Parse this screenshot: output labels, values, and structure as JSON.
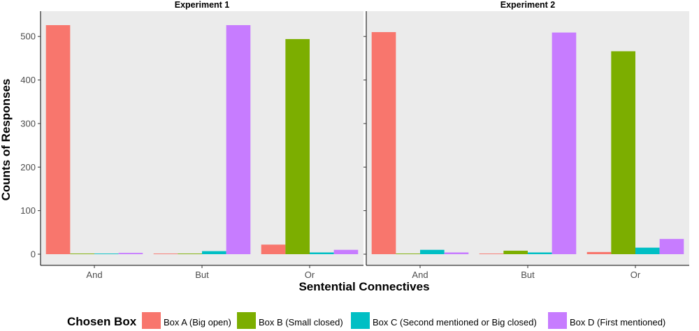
{
  "chart_data": {
    "type": "bar",
    "xlabel": "Sentential Connectives",
    "ylabel": "Counts of Responses",
    "ylim": [
      0,
      560
    ],
    "yticks": [
      0,
      100,
      200,
      300,
      400,
      500
    ],
    "categories": [
      "And",
      "But",
      "Or"
    ],
    "legend": {
      "title": "Chosen Box",
      "placement": "bottom"
    },
    "series_meta": [
      {
        "name": "Box A (Big open)",
        "color": "#F8766D"
      },
      {
        "name": "Box B (Small closed)",
        "color": "#7CAE00"
      },
      {
        "name": "Box C (Second mentioned or Big closed)",
        "color": "#00BFC4"
      },
      {
        "name": "Box D (First mentioned)",
        "color": "#C77CFF"
      }
    ],
    "panels": [
      {
        "title": "Experiment 1",
        "series": [
          {
            "name": "Box A (Big open)",
            "values": [
              526,
              1,
              22
            ]
          },
          {
            "name": "Box B (Small closed)",
            "values": [
              1,
              1,
              494
            ]
          },
          {
            "name": "Box C (Second mentioned or Big closed)",
            "values": [
              1,
              7,
              4
            ]
          },
          {
            "name": "Box D (First mentioned)",
            "values": [
              3,
              526,
              10
            ]
          }
        ]
      },
      {
        "title": "Experiment 2",
        "series": [
          {
            "name": "Box A (Big open)",
            "values": [
              510,
              1,
              5
            ]
          },
          {
            "name": "Box B (Small closed)",
            "values": [
              1,
              8,
              466
            ]
          },
          {
            "name": "Box C (Second mentioned or Big closed)",
            "values": [
              10,
              4,
              15
            ]
          },
          {
            "name": "Box D (First mentioned)",
            "values": [
              4,
              509,
              35
            ]
          }
        ]
      }
    ],
    "grid": false,
    "panel_background": "#EBEBEB"
  }
}
